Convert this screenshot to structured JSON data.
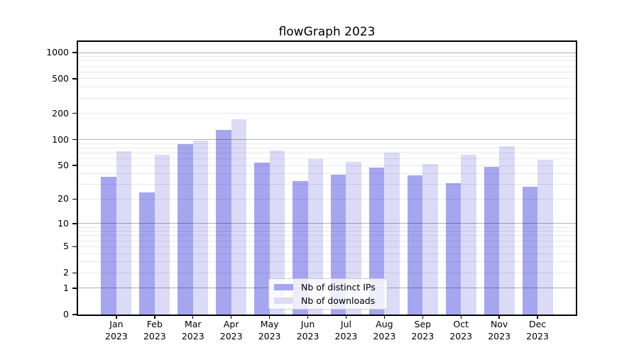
{
  "chart_data": {
    "type": "bar",
    "title": "flowGraph 2023",
    "yscale": "log1p",
    "ylim": [
      0,
      1325
    ],
    "y_ticks": [
      0,
      1,
      2,
      5,
      10,
      20,
      50,
      100,
      200,
      500,
      1000
    ],
    "y_tick_labels": [
      "0",
      "1",
      "2",
      "5",
      "10",
      "20",
      "50",
      "100",
      "200",
      "500",
      "1000"
    ],
    "categories": [
      "Jan",
      "Feb",
      "Mar",
      "Apr",
      "May",
      "Jun",
      "Jul",
      "Aug",
      "Sep",
      "Oct",
      "Nov",
      "Dec"
    ],
    "x_year_label": "2023",
    "series": [
      {
        "name": "Nb of distinct IPs",
        "color": "#a6a6f0",
        "values": [
          37,
          24,
          89,
          128,
          54,
          33,
          39,
          47,
          38,
          31,
          48,
          28
        ]
      },
      {
        "name": "Nb of downloads",
        "color": "#dbdbf8",
        "values": [
          73,
          66,
          97,
          172,
          74,
          59,
          55,
          70,
          52,
          66,
          84,
          58
        ]
      }
    ],
    "legend": {
      "position": "bottom-center",
      "items": [
        "Nb of distinct IPs",
        "Nb of downloads"
      ]
    },
    "grid": {
      "major_color": "#b3b3b3",
      "minor_color": "#e9e9e9"
    },
    "colors": {
      "axis": "#000000",
      "background": "#ffffff"
    }
  }
}
